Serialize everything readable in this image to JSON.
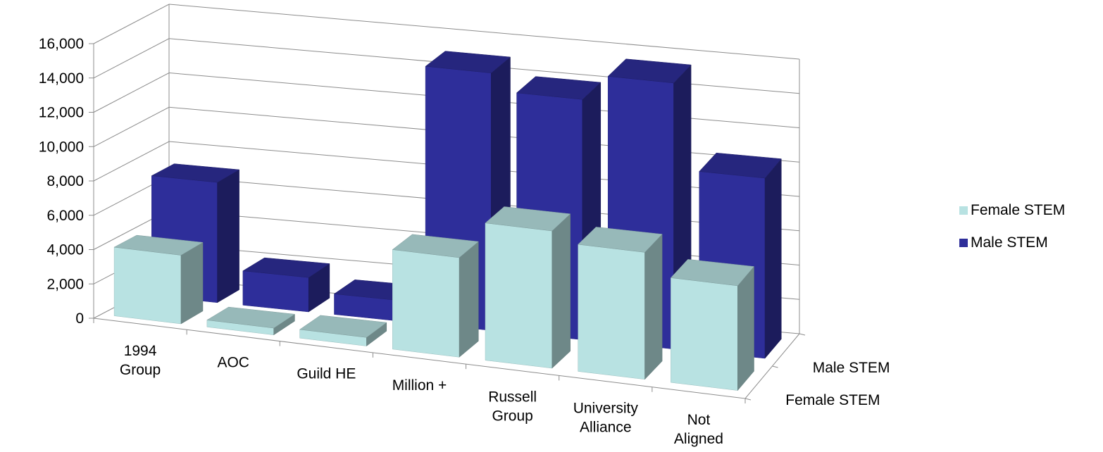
{
  "chart_data": {
    "type": "bar",
    "title": "",
    "xlabel": "",
    "ylabel": "",
    "categories": [
      [
        "1994",
        "Group"
      ],
      [
        "AOC"
      ],
      [
        "Guild HE"
      ],
      [
        "Million +"
      ],
      [
        "Russell",
        "Group"
      ],
      [
        "University",
        "Alliance"
      ],
      [
        "Not",
        "Aligned"
      ]
    ],
    "series": [
      {
        "name": "Female STEM",
        "values": [
          4000,
          400,
          500,
          5800,
          8000,
          7400,
          6100
        ],
        "color": "#b8e2e2"
      },
      {
        "name": "Male STEM",
        "values": [
          7000,
          2000,
          1200,
          15000,
          14000,
          15500,
          10500
        ],
        "color": "#2e2e9a"
      }
    ],
    "depth_labels": [
      "Female STEM",
      "Male STEM"
    ],
    "y_ticks": [
      "0",
      "2,000",
      "4,000",
      "6,000",
      "8,000",
      "10,000",
      "12,000",
      "14,000",
      "16,000"
    ],
    "ylim": [
      0,
      16000
    ],
    "grid": true,
    "legend_position": "right"
  }
}
